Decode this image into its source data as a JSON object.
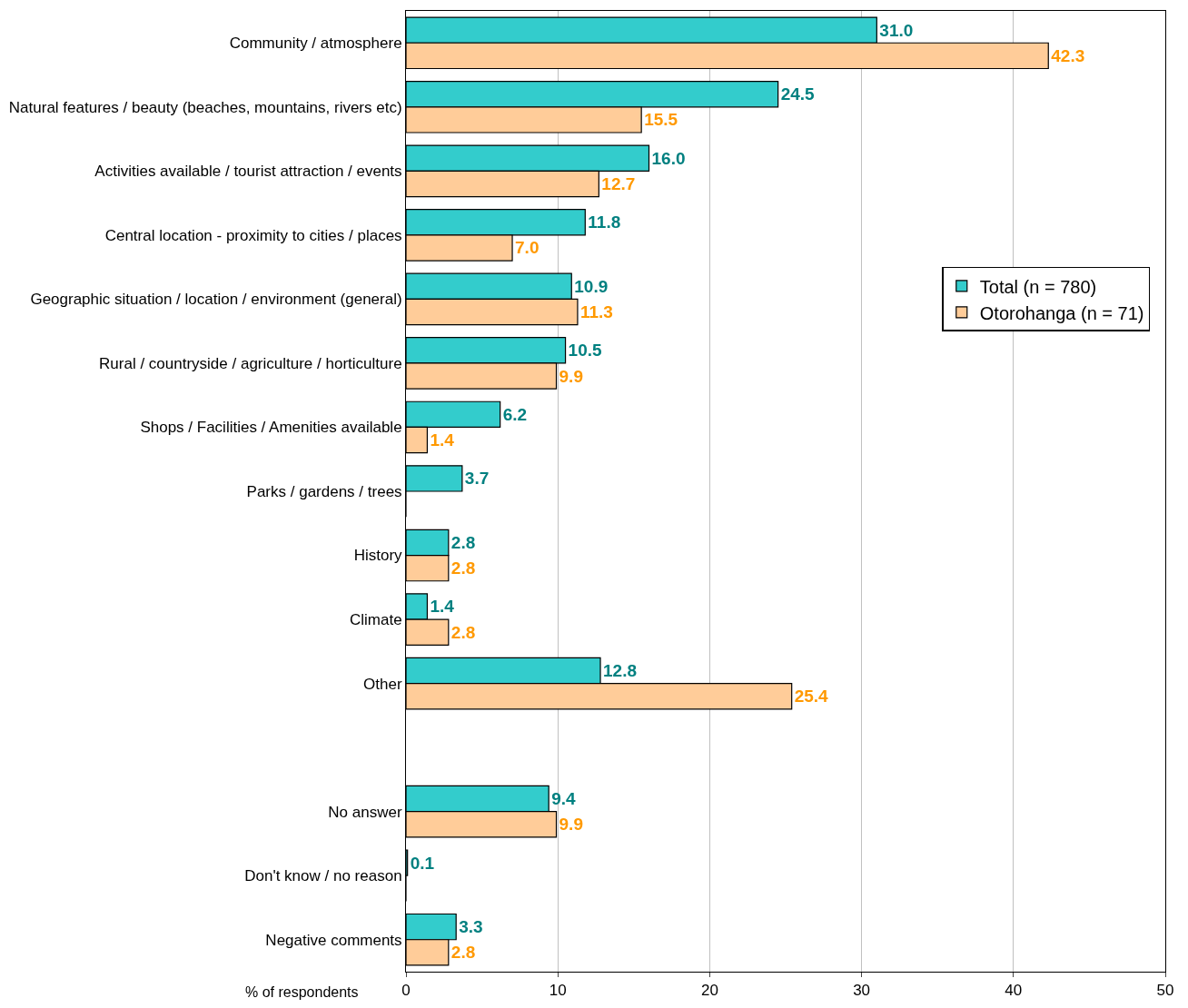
{
  "chart_data": {
    "type": "bar",
    "orientation": "horizontal",
    "xlabel": "% of respondents",
    "categories": [
      "Community / atmosphere",
      "Natural features / beauty (beaches, mountains, rivers etc)",
      "Activities available / tourist attraction / events",
      "Central location - proximity to cities / places",
      "Geographic situation / location / environment (general)",
      "Rural / countryside / agriculture / horticulture",
      "Shops / Facilities / Amenities available",
      "Parks / gardens / trees",
      "History",
      "Climate",
      "Other",
      null,
      "No answer",
      "Don't know / no reason",
      "Negative comments"
    ],
    "series": [
      {
        "name": "Total (n = 780)",
        "color": "#33cccc",
        "values": [
          31.0,
          24.5,
          16.0,
          11.8,
          10.9,
          10.5,
          6.2,
          3.7,
          2.8,
          1.4,
          12.8,
          null,
          9.4,
          0.1,
          3.3
        ],
        "value_labels": [
          "31.0",
          "24.5",
          "16.0",
          "11.8",
          "10.9",
          "10.5",
          "6.2",
          "3.7",
          "2.8",
          "1.4",
          "12.8",
          null,
          "9.4",
          "0.1",
          "3.3"
        ]
      },
      {
        "name": "Otorohanga (n = 71)",
        "color": "#ffcc99",
        "values": [
          42.3,
          15.5,
          12.7,
          7.0,
          11.3,
          9.9,
          1.4,
          0,
          2.8,
          2.8,
          25.4,
          null,
          9.9,
          0,
          2.8
        ],
        "value_labels": [
          "42.3",
          "15.5",
          "12.7",
          "7.0",
          "11.3",
          "9.9",
          "1.4",
          null,
          "2.8",
          "2.8",
          "25.4",
          null,
          "9.9",
          null,
          "2.8"
        ]
      }
    ],
    "xlim": [
      0,
      50
    ],
    "xticks": [
      0,
      10,
      20,
      30,
      40,
      50
    ],
    "grid": "x",
    "legend": "right"
  }
}
